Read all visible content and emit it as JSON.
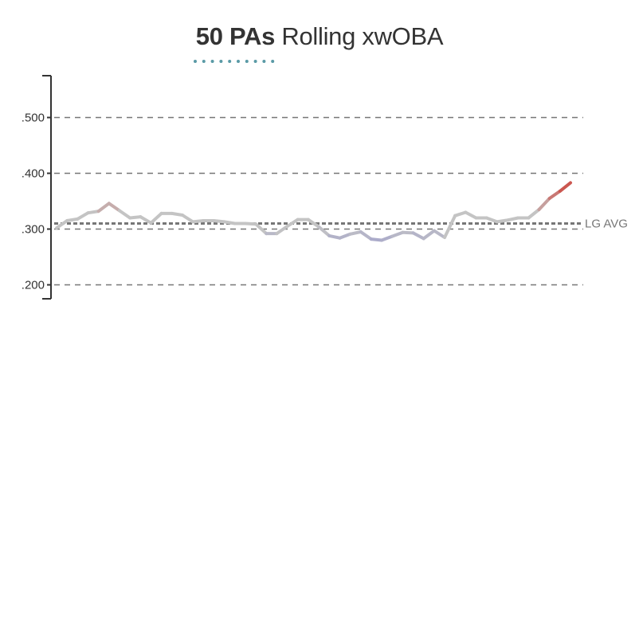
{
  "title": {
    "bold": "50 PAs",
    "rest": "Rolling xwOBA"
  },
  "colors": {
    "neutral": "#c4c4c4",
    "hot": "#cc4c45",
    "cold": "#a3a3cc",
    "gridline": "#777777",
    "avg_line": "#777777",
    "title_dots": "#5a9aa6",
    "axis": "#333333"
  },
  "chart_data": {
    "type": "line",
    "title": "50 PAs Rolling xwOBA",
    "xlabel": "",
    "ylabel": "",
    "ylim": [
      0.175,
      0.575
    ],
    "yticks": [
      0.2,
      0.3,
      0.4,
      0.5
    ],
    "ytick_labels": [
      ".200",
      ".300",
      ".400",
      ".500"
    ],
    "grid": true,
    "league_average": {
      "label": "LG AVG",
      "value": 0.31
    },
    "series": [
      {
        "values": [
          0.302,
          0.315,
          0.318,
          0.329,
          0.332,
          0.346,
          0.333,
          0.32,
          0.322,
          0.311,
          0.328,
          0.328,
          0.325,
          0.313,
          0.315,
          0.315,
          0.313,
          0.31,
          0.31,
          0.309,
          0.292,
          0.292,
          0.305,
          0.317,
          0.317,
          0.304,
          0.288,
          0.284,
          0.291,
          0.295,
          0.282,
          0.28,
          0.287,
          0.294,
          0.293,
          0.283,
          0.297,
          0.285,
          0.324,
          0.33,
          0.32,
          0.32,
          0.313,
          0.316,
          0.32,
          0.32,
          0.335,
          0.355,
          0.368,
          0.383
        ]
      }
    ]
  }
}
